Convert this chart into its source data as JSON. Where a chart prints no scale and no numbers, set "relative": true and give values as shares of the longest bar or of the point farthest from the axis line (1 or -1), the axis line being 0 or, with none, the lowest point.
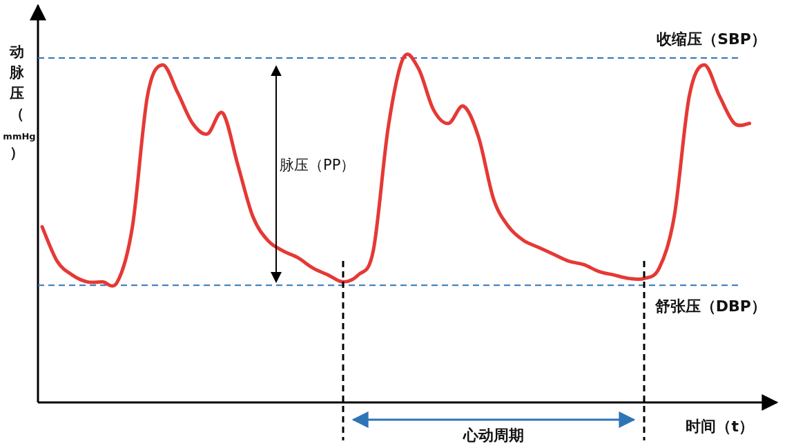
{
  "chart_data": {
    "type": "line",
    "relative": true,
    "categories": [
      null,
      null,
      null,
      null,
      null,
      null,
      null,
      null,
      null,
      null,
      null,
      null,
      null,
      null,
      null,
      null,
      null,
      null,
      null,
      null,
      null,
      null,
      null,
      null,
      null,
      null,
      null,
      null,
      null,
      null,
      null,
      null,
      null,
      null,
      null,
      null,
      null,
      null,
      null,
      null,
      null,
      null,
      null,
      null,
      null,
      null,
      null,
      null
    ],
    "series": [
      {
        "color": "#e53935",
        "values": [
          0.51,
          0.41,
          0.37,
          0.35,
          0.35,
          0.35,
          0.51,
          0.89,
          0.98,
          0.9,
          0.81,
          0.78,
          0.84,
          0.69,
          0.54,
          0.47,
          0.44,
          0.42,
          0.39,
          0.37,
          0.35,
          0.37,
          0.44,
          0.8,
          1.0,
          0.97,
          0.85,
          0.81,
          0.86,
          0.77,
          0.59,
          0.51,
          0.47,
          0.45,
          0.43,
          0.41,
          0.4,
          0.38,
          0.37,
          0.36,
          0.36,
          0.39,
          0.54,
          0.89,
          0.98,
          0.89,
          0.81,
          0.81
        ]
      }
    ],
    "xlabel": "时间（t）",
    "ylabel": "动脉压（mmHg）",
    "ref_lines": [
      {
        "axis": "y",
        "value": 1.0,
        "label": "收缩压（SBP）",
        "color": "#2e75b6",
        "line_style": "dashed"
      },
      {
        "axis": "y",
        "value": 0.34,
        "label": "舒张压（DBP）",
        "color": "#2e75b6",
        "line_style": "dashed"
      }
    ],
    "annotations": [
      "脉压（PP）",
      "心动周期"
    ],
    "line_style": "solid"
  }
}
